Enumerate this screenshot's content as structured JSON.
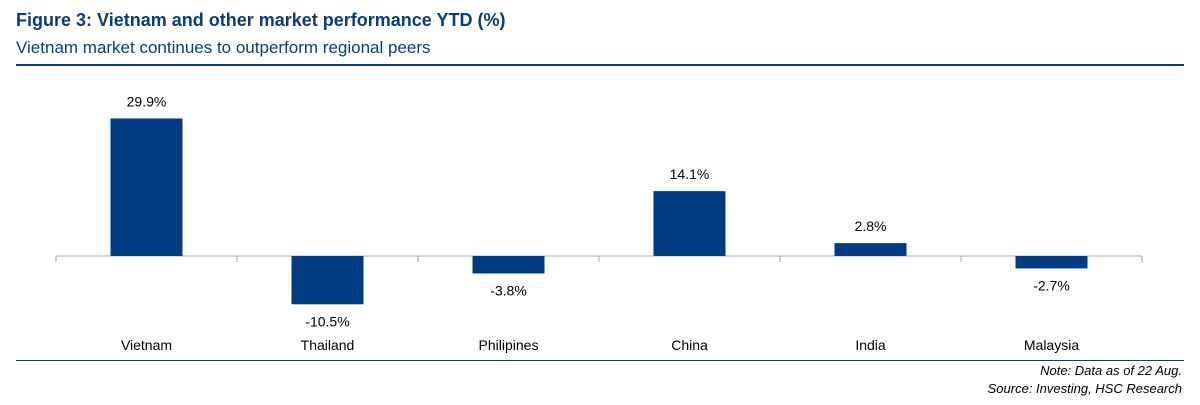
{
  "header": {
    "title": "Figure 3: Vietnam and other market performance YTD (%)",
    "subtitle": "Vietnam market continues to outperform regional peers"
  },
  "footer": {
    "note": "Note: Data as of 22 Aug.",
    "source": "Source: Investing, HSC Research"
  },
  "colors": {
    "bar": "#003A80",
    "accent": "#0B3C7C",
    "axis": "#A6A6A6"
  },
  "chart_data": {
    "type": "bar",
    "title": "Figure 3: Vietnam and other market performance YTD (%)",
    "subtitle": "Vietnam market continues to outperform regional peers",
    "categories": [
      "Vietnam",
      "Thailand",
      "Philipines",
      "China",
      "India",
      "Malaysia"
    ],
    "values": [
      29.9,
      -10.5,
      -3.8,
      14.1,
      2.8,
      -2.7
    ],
    "data_labels": [
      "29.9%",
      "-10.5%",
      "-3.8%",
      "14.1%",
      "2.8%",
      "-2.7%"
    ],
    "xlabel": "",
    "ylabel": "",
    "ylim": [
      -10.5,
      29.9
    ],
    "grid": false,
    "legend": "none"
  }
}
